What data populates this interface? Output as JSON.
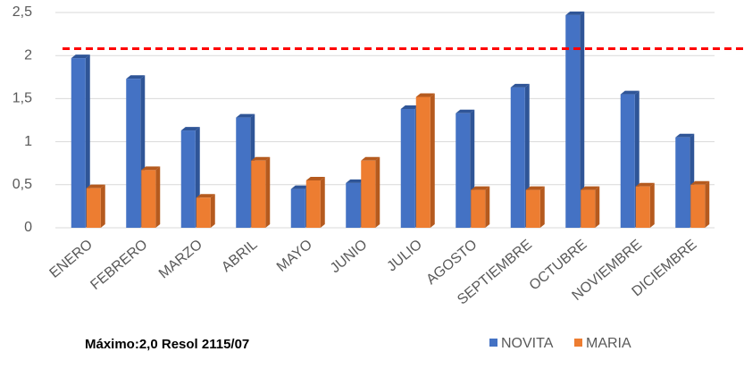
{
  "chart_data": {
    "type": "bar3d",
    "categories": [
      "ENERO",
      "FEBRERO",
      "MARZO",
      "ABRIL",
      "MAYO",
      "JUNIO",
      "JULIO",
      "AGOSTO",
      "SEPTIEMBRE",
      "OCTUBRE",
      "NOVIEMBRE",
      "DICIEMBRE"
    ],
    "series": [
      {
        "name": "NOVITA",
        "color": "#4472c4",
        "side": "#2f5597",
        "values": [
          1.97,
          1.73,
          1.13,
          1.28,
          0.45,
          0.52,
          1.38,
          1.33,
          1.63,
          2.47,
          1.55,
          1.05
        ]
      },
      {
        "name": "MARIA",
        "color": "#ed7d31",
        "side": "#b55a1e",
        "values": [
          0.46,
          0.67,
          0.35,
          0.78,
          0.55,
          0.78,
          1.52,
          0.44,
          0.44,
          0.44,
          0.48,
          0.5
        ]
      }
    ],
    "ylim": [
      0,
      2.5
    ],
    "yticks": [
      0,
      {
        "value": 0.5,
        "label": "0,5"
      },
      1,
      {
        "value": 1.5,
        "label": "1,5"
      },
      2,
      {
        "value": 2.5,
        "label": "2,5"
      }
    ],
    "grid": true,
    "threshold": {
      "value": 2.08,
      "color": "#ff0000"
    },
    "annotation": "Máximo:2,0  Resol 2115/07",
    "legend": "bottom-right"
  }
}
